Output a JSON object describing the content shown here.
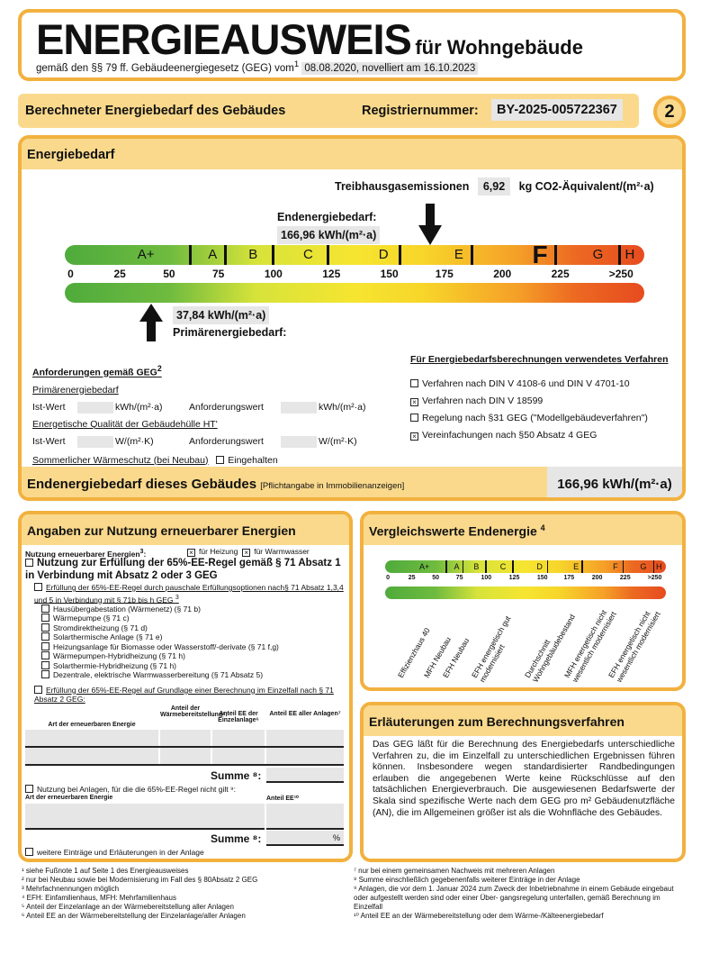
{
  "header": {
    "title": "ENERGIEAUSWEIS",
    "subtitle": "für Wohngebäude",
    "law_text": "gemäß den §§ 79 ff. Gebäudeenergiegesetz (GEG) vom",
    "law_sup": "1",
    "law_date": "08.08.2020, novelliert am 16.10.2023"
  },
  "section_bar": {
    "title": "Berechneter Energiebedarf des Gebäudes",
    "reg_label": "Registriernummer:",
    "reg_value": "BY-2025-005722367",
    "page": "2"
  },
  "energy": {
    "title": "Energiebedarf",
    "ghg_label": "Treibhausgasemissionen",
    "ghg_value": "6,92",
    "ghg_unit": "kg CO2-Äquivalent/(m²·a)",
    "end_label": "Endenergiebedarf:",
    "end_value": "166,96 kWh/(m²·a)",
    "primary_value": "37,84 kWh/(m²·a)",
    "primary_label": "Primärenergiebedarf:",
    "classes": [
      "A+",
      "A",
      "B",
      "C",
      "D",
      "E",
      "F",
      "G",
      "H"
    ],
    "active_class": "F",
    "ticks": [
      "0",
      "25",
      "50",
      "75",
      "100",
      "125",
      "150",
      "175",
      "200",
      "225",
      ">250"
    ],
    "end_energy_kwh": 166.96,
    "primary_energy_kwh": 37.84,
    "req": {
      "title": "Anforderungen gemäß GEG",
      "title_sup": "2",
      "primary": "Primärenergiebedarf",
      "ist": "Ist-Wert",
      "kwh": "kWh/(m²·a)",
      "anf": "Anforderungswert",
      "ht": "Energetische Qualität der Gebäudehülle HT'",
      "wmk": "W/(m²·K)",
      "summer": "Sommerlicher Wärmeschutz (bei Neubau)",
      "eingehalten": "Eingehalten"
    },
    "methods": {
      "title": "Für Energiebedarfsberechnungen verwendetes Verfahren",
      "items": [
        {
          "label": "Verfahren nach DIN V 4108-6 und DIN V 4701-10",
          "checked": false
        },
        {
          "label": "Verfahren nach DIN V 18599",
          "checked": true
        },
        {
          "label": "Regelung nach §31 GEG (\"Modellgebäudeverfahren\")",
          "checked": false
        },
        {
          "label": "Vereinfachungen nach §50 Absatz 4 GEG",
          "checked": true
        }
      ]
    },
    "footer_label": "Endenergiebedarf dieses Gebäudes",
    "footer_note": "[Pflichtangabe in Immobilienanzeigen]",
    "footer_value": "166,96 kWh/(m²·a)"
  },
  "renewable": {
    "title": "Angaben zur Nutzung erneuerbarer Energien",
    "usage_label": "Nutzung erneuerbarer Energien",
    "usage_sup": "3",
    "heating": "für Heizung",
    "water": "für Warmwasser",
    "rule_title": "Nutzung zur Erfüllung der 65%-EE-Regel gemäß § 71 Absatz 1 in Verbindung mit Absatz 2 oder 3 GEG",
    "flat_title": "Erfüllung der 65%-EE-Regel durch pauschale Erfüllungsoptionen nach§ 71 Absatz 1,3,4 und 5 in Verbindung mit § 71b bis h GEG",
    "options": [
      "Hausübergabestation (Wärmenetz) (§ 71 b)",
      "Wärmepumpe (§ 71 c)",
      "Stromdirektheizung (§ 71 d)",
      "Solarthermische Anlage (§ 71 e)",
      "Heizungsanlage für Biomasse oder Wasserstoff/-derivate (§ 71 f,g)",
      "Wärmepumpen-Hybridheizung (§ 71 h)",
      "Solarthermie-Hybridheizung (§ 71 h)",
      "Dezentrale, elektrische Warmwasserbereitung (§ 71 Absatz 5)"
    ],
    "calc_title": "Erfüllung der 65%-EE-Regel auf Grundlage einer Berechnung im Einzelfall nach § 71 Absatz 2 GEG:",
    "col1": "Art der erneuerbaren Energie",
    "col2": "Anteil der Wärmebereitstellung⁵:",
    "col3": "Anteil EE der Einzelanlage⁶",
    "col4": "Anteil EE aller Anlagen⁷",
    "summe": "Summe ⁸:",
    "other_title": "Nutzung bei Anlagen, für die die 65%-EE-Regel nicht gilt ⁹:",
    "other_col1": "Art der erneuerbaren Energie",
    "other_col2": "Anteil EE¹⁰",
    "percent": "%",
    "more": "weitere Einträge und Erläuterungen in der Anlage"
  },
  "comparison": {
    "title": "Vergleichswerte Endenergie",
    "title_sup": "4",
    "refs": [
      "Effizienzhaus 40",
      "MFH Neubau",
      "EFH Neubau",
      "EFH energetisch gut modernisiert",
      "Durchschnitt Wohngebäudebestand",
      "MFH energetisch nicht wesentlich modernisiert",
      "EFH energetisch nicht wesentlich modernisiert"
    ]
  },
  "explain": {
    "title": "Erläuterungen zum Berechnungsverfahren",
    "text": "Das GEG läßt für die Berechnung des Energiebedarfs unterschiedliche Verfahren zu, die im Einzelfall zu unterschiedlichen Ergebnissen führen können. Insbesondere wegen standardisierter Randbedingungen erlauben die angegebenen Werte keine Rückschlüsse auf den tatsächlichen Energieverbrauch. Die ausgewiesenen Bedarfswerte der Skala sind spezifische Werte nach dem GEG pro m² Gebäudenutzfläche (AN), die im Allgemeinen größer ist als die Wohnfläche des Gebäudes."
  },
  "footnotes_left": [
    "¹ siehe Fußnote 1 auf Seite 1 des Energieausweises",
    "² nur bei Neubau sowie bei Modernisierung im Fall des § 80Absatz 2 GEG",
    "³ Mehrfachnennungen möglich",
    "⁴ EFH: Einfamilienhaus, MFH: Mehrfamilienhaus",
    "⁵ Anteil der Einzelanlage an der Wärmebereitstellung aller Anlagen",
    "⁶ Anteil EE an der Wärmebereitstellung der Einzelanlage/aller Anlagen"
  ],
  "footnotes_right": [
    "⁷ nur bei einem gemeinsamen Nachweis mit mehreren Anlagen",
    "⁸ Summe einschließlich gegebenenfalls weiterer Einträge in der Anlage",
    "⁹ Anlagen, die vor dem 1. Januar 2024 zum Zweck der Inbetriebnahme in einem Gebäude eingebaut oder aufgestellt werden sind oder einer Über- gangsregelung unterfallen, gemäß Berechnung im Einzelfall",
    "¹⁰ Anteil EE an der Wärmebereitstellung oder dem Wärme-/Kälteenergiebedarf"
  ]
}
